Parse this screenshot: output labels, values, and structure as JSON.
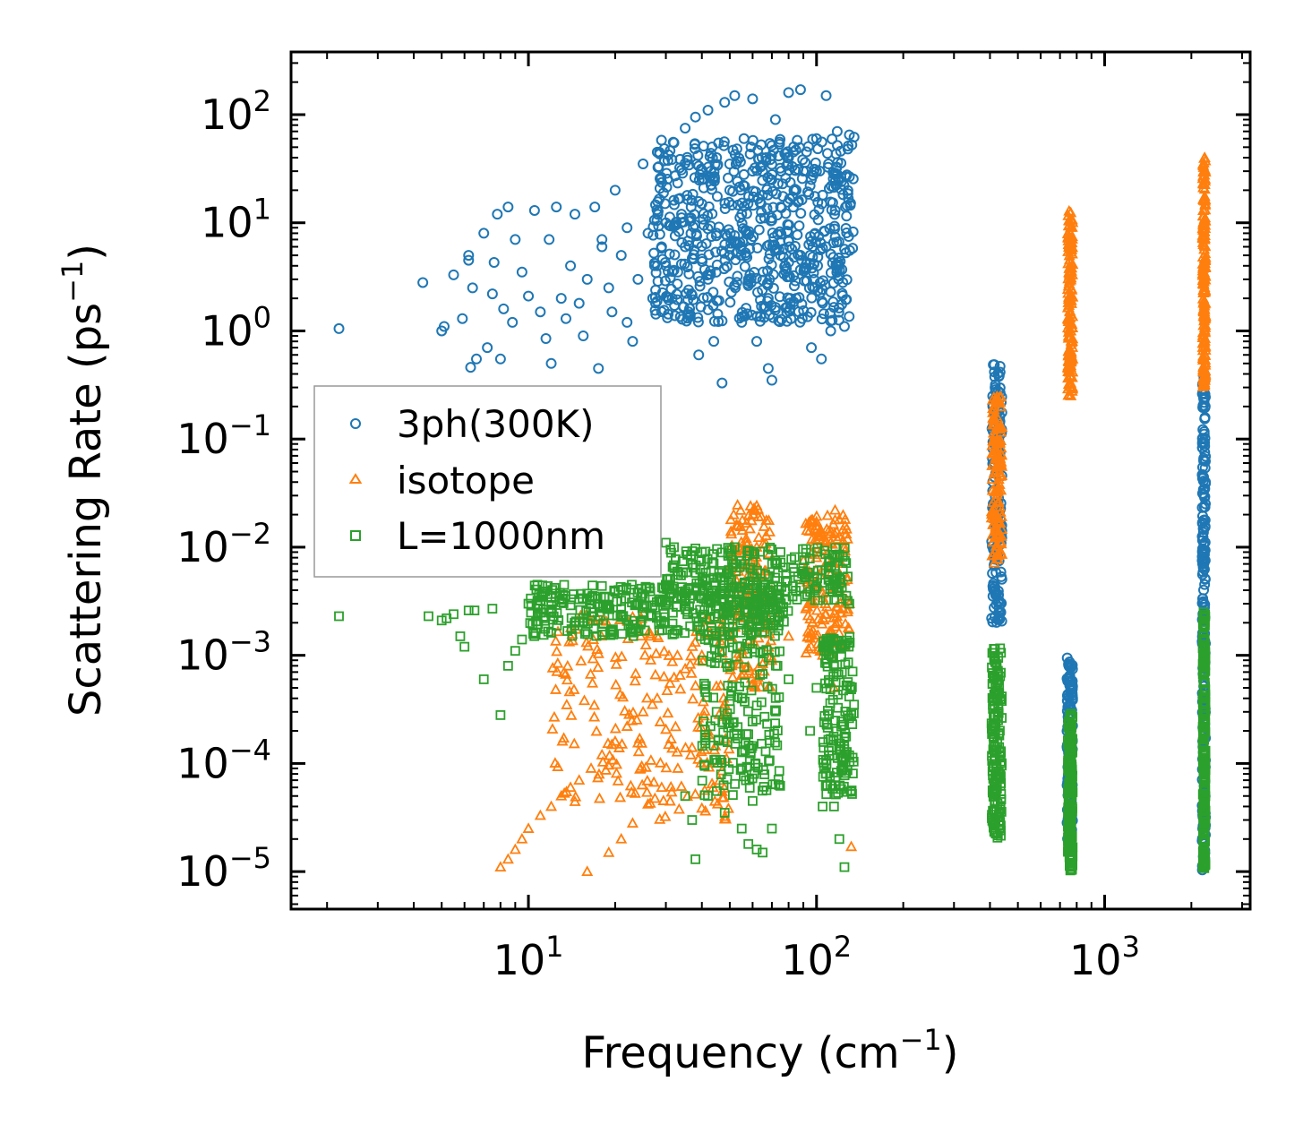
{
  "chart_data": {
    "type": "scatter",
    "title": "",
    "xlabel": "Frequency (cm",
    "xlabel_sup": "−1",
    "xlabel_close": ")",
    "ylabel": "Scattering Rate (ps",
    "ylabel_sup": "−1",
    "ylabel_close": ")",
    "xscale": "log",
    "yscale": "log",
    "xlim": [
      1.5,
      3200
    ],
    "ylim": [
      4.5e-06,
      380
    ],
    "x_ticks": [
      {
        "value": 10,
        "base": "10",
        "exp": "1"
      },
      {
        "value": 100,
        "base": "10",
        "exp": "2"
      },
      {
        "value": 1000,
        "base": "10",
        "exp": "3"
      }
    ],
    "y_ticks": [
      {
        "value": 1e-05,
        "base": "10",
        "exp": "−5"
      },
      {
        "value": 0.0001,
        "base": "10",
        "exp": "−4"
      },
      {
        "value": 0.001,
        "base": "10",
        "exp": "−3"
      },
      {
        "value": 0.01,
        "base": "10",
        "exp": "−2"
      },
      {
        "value": 0.1,
        "base": "10",
        "exp": "−1"
      },
      {
        "value": 1,
        "base": "10",
        "exp": "0"
      },
      {
        "value": 10,
        "base": "10",
        "exp": "1"
      },
      {
        "value": 100,
        "base": "10",
        "exp": "2"
      }
    ],
    "legend_position": "center-left",
    "series": [
      {
        "name": "3ph(300K)",
        "marker": "circle",
        "color": "#1f77b4",
        "points": [
          [
            2.2,
            1.05
          ],
          [
            4.3,
            2.8
          ],
          [
            5.0,
            1.0
          ],
          [
            5.1,
            1.1
          ],
          [
            5.5,
            3.3
          ],
          [
            5.9,
            1.3
          ],
          [
            6.2,
            4.5
          ],
          [
            6.2,
            5.0
          ],
          [
            6.3,
            0.46
          ],
          [
            6.4,
            2.5
          ],
          [
            6.6,
            0.55
          ],
          [
            7.0,
            8.0
          ],
          [
            7.2,
            0.7
          ],
          [
            7.5,
            2.2
          ],
          [
            7.6,
            4.3
          ],
          [
            7.8,
            12.0
          ],
          [
            8.0,
            0.55
          ],
          [
            8.2,
            1.6
          ],
          [
            8.5,
            14.0
          ],
          [
            8.8,
            1.2
          ],
          [
            9.0,
            7.0
          ],
          [
            9.5,
            3.5
          ],
          [
            10.0,
            2.1
          ],
          [
            10.5,
            13.0
          ],
          [
            11.0,
            1.5
          ],
          [
            11.5,
            0.85
          ],
          [
            11.8,
            7.0
          ],
          [
            12.0,
            0.5
          ],
          [
            12.5,
            14.0
          ],
          [
            13.0,
            2.0
          ],
          [
            13.5,
            1.3
          ],
          [
            14.0,
            4.0
          ],
          [
            14.5,
            12.0
          ],
          [
            15.0,
            1.8
          ],
          [
            15.5,
            0.9
          ],
          [
            16.0,
            3.0
          ],
          [
            17.0,
            14.0
          ],
          [
            17.5,
            0.45
          ],
          [
            18.0,
            6.0
          ],
          [
            19.0,
            2.5
          ],
          [
            19.5,
            1.5
          ],
          [
            20.0,
            20.0
          ],
          [
            21.0,
            5.0
          ],
          [
            22.0,
            1.2
          ],
          [
            23.0,
            0.8
          ],
          [
            24.0,
            3.0
          ],
          [
            25.0,
            35.0
          ],
          [
            26.0,
            8.0
          ],
          [
            27.0,
            2.0
          ],
          [
            28.0,
            45.0
          ],
          [
            29.0,
            6.0
          ],
          [
            30.0,
            4.0
          ],
          [
            32.0,
            55.0
          ],
          [
            33.0,
            3.5
          ],
          [
            34.0,
            12.0
          ],
          [
            35.0,
            75.0
          ],
          [
            36.0,
            1.5
          ],
          [
            38.0,
            95.0
          ],
          [
            39.0,
            0.6
          ],
          [
            40.0,
            25.0
          ],
          [
            42.0,
            110.0
          ],
          [
            44.0,
            0.8
          ],
          [
            45.0,
            40.0
          ],
          [
            47.0,
            0.33
          ],
          [
            48.0,
            130.0
          ],
          [
            50.0,
            5.0
          ],
          [
            52.0,
            150.0
          ],
          [
            55.0,
            1.2
          ],
          [
            56.0,
            60.0
          ],
          [
            60.0,
            140.0
          ],
          [
            62.0,
            0.8
          ],
          [
            65.0,
            30.0
          ],
          [
            68.0,
            0.45
          ],
          [
            70.0,
            0.35
          ],
          [
            72.0,
            90.0
          ],
          [
            75.0,
            5.0
          ],
          [
            80.0,
            160.0
          ],
          [
            85.0,
            2.0
          ],
          [
            88.0,
            170.0
          ],
          [
            92.0,
            30.0
          ],
          [
            96.0,
            0.7
          ],
          [
            100.0,
            60.0
          ],
          [
            104.0,
            0.55
          ],
          [
            108.0,
            150.0
          ],
          [
            112.0,
            1.0
          ],
          [
            118.0,
            70.0
          ],
          [
            125.0,
            1.1
          ],
          [
            130.0,
            65.0
          ],
          [
            135.0,
            62.0
          ],
          [
            30,
            10
          ],
          [
            40,
            15
          ],
          [
            50,
            20
          ],
          [
            60,
            30
          ],
          [
            70,
            25
          ],
          [
            80,
            40
          ],
          [
            90,
            30
          ],
          [
            100,
            30
          ],
          [
            110,
            35
          ],
          [
            120,
            25
          ],
          [
            45,
            8
          ],
          [
            55,
            12
          ],
          [
            65,
            18
          ],
          [
            75,
            14
          ],
          [
            85,
            20
          ],
          [
            95,
            22
          ],
          [
            105,
            18
          ],
          [
            115,
            28
          ],
          [
            35,
            6
          ],
          [
            28,
            4
          ],
          [
            22,
            9
          ],
          [
            18,
            7
          ],
          [
            42,
            3
          ],
          [
            58,
            3
          ],
          [
            68,
            2
          ],
          [
            78,
            4
          ],
          [
            88,
            5
          ],
          [
            98,
            3
          ],
          [
            108,
            6
          ],
          [
            118,
            4
          ]
        ],
        "bands": [
          {
            "x": [
              27,
              135
            ],
            "y": [
              1.2,
              60
            ],
            "count": 650
          },
          {
            "x": [
              405,
              440
            ],
            "y": [
              0.002,
              0.5
            ],
            "count": 160
          },
          {
            "x": [
              740,
              775
            ],
            "y": [
              2e-05,
              0.001
            ],
            "count": 130
          },
          {
            "x": [
              2180,
              2240
            ],
            "y": [
              1e-05,
              0.4
            ],
            "count": 220
          }
        ]
      },
      {
        "name": "isotope",
        "marker": "triangle",
        "color": "#ff7f0e",
        "points": [
          [
            8.0,
            1.1e-05
          ],
          [
            8.5,
            1.3e-05
          ],
          [
            9.0,
            1.6e-05
          ],
          [
            9.5,
            2e-05
          ],
          [
            10.0,
            2.5e-05
          ],
          [
            11.0,
            3.3e-05
          ],
          [
            12.0,
            4e-05
          ],
          [
            13.0,
            5e-05
          ],
          [
            14.0,
            6e-05
          ],
          [
            15.0,
            7e-05
          ],
          [
            16.0,
            1e-05
          ],
          [
            16.5,
            9e-05
          ],
          [
            18.0,
            0.00012
          ],
          [
            19.0,
            1.5e-05
          ],
          [
            20.0,
            0.00016
          ],
          [
            21.0,
            2e-05
          ],
          [
            22.0,
            0.00022
          ],
          [
            23.0,
            2.8e-05
          ],
          [
            25.0,
            0.0003
          ],
          [
            26.0,
            4.2e-05
          ],
          [
            28.0,
            0.0004
          ],
          [
            29.0,
            6e-05
          ],
          [
            31.0,
            0.00055
          ],
          [
            33.0,
            9e-05
          ],
          [
            35.0,
            0.00075
          ],
          [
            37.0,
            0.00014
          ],
          [
            40.0,
            0.001
          ],
          [
            42.0,
            0.0002
          ],
          [
            45.0,
            0.0015
          ],
          [
            48.0,
            0.00028
          ],
          [
            50.0,
            0.0025
          ],
          [
            54.0,
            0.0045
          ],
          [
            57.0,
            0.012
          ],
          [
            59.0,
            0.024
          ],
          [
            62.0,
            0.01
          ],
          [
            66.0,
            0.006
          ],
          [
            70.0,
            0.004
          ],
          [
            75.0,
            0.0025
          ],
          [
            80.0,
            0.0015
          ],
          [
            90.0,
            0.005
          ],
          [
            100.0,
            0.008
          ],
          [
            110.0,
            0.014
          ],
          [
            116.0,
            0.022
          ],
          [
            120.0,
            0.018
          ],
          [
            125.0,
            0.01
          ],
          [
            128.0,
            0.005
          ],
          [
            130.0,
            0.003
          ],
          [
            132.0,
            1.7e-05
          ],
          [
            115.0,
            0.0005
          ],
          [
            105.0,
            0.001
          ],
          [
            95.0,
            0.003
          ]
        ],
        "bands": [
          {
            "x": [
              12,
              50
            ],
            "y": [
              3e-05,
              0.0025
            ],
            "count": 220
          },
          {
            "x": [
              50,
              70
            ],
            "y": [
              0.0005,
              0.025
            ],
            "count": 150
          },
          {
            "x": [
              90,
              130
            ],
            "y": [
              0.001,
              0.02
            ],
            "count": 150
          },
          {
            "x": [
              405,
              440
            ],
            "y": [
              0.007,
              0.25
            ],
            "count": 150
          },
          {
            "x": [
              745,
              775
            ],
            "y": [
              0.25,
              13
            ],
            "count": 160
          },
          {
            "x": [
              2190,
              2240
            ],
            "y": [
              0.3,
              40
            ],
            "count": 200
          }
        ]
      },
      {
        "name": "L=1000nm",
        "marker": "square",
        "color": "#2ca02c",
        "points": [
          [
            2.2,
            0.0023
          ],
          [
            4.5,
            0.0023
          ],
          [
            5.0,
            0.0021
          ],
          [
            5.2,
            0.0022
          ],
          [
            5.5,
            0.0024
          ],
          [
            5.8,
            0.0015
          ],
          [
            6.0,
            0.0012
          ],
          [
            6.2,
            0.0026
          ],
          [
            6.5,
            0.0026
          ],
          [
            7.0,
            0.0006
          ],
          [
            7.5,
            0.0027
          ],
          [
            8.0,
            0.00028
          ],
          [
            8.5,
            0.0008
          ],
          [
            9.0,
            0.0011
          ],
          [
            9.5,
            0.0014
          ],
          [
            10.0,
            0.003
          ],
          [
            11.0,
            0.0032
          ],
          [
            12.0,
            0.0034
          ],
          [
            13.0,
            0.0031
          ],
          [
            14.0,
            0.0029
          ],
          [
            15.0,
            0.0033
          ],
          [
            17.0,
            0.0035
          ],
          [
            19.0,
            0.0028
          ],
          [
            21.0,
            0.0032
          ],
          [
            24.0,
            0.003
          ],
          [
            27.0,
            0.0029
          ],
          [
            30.0,
            0.011
          ],
          [
            32.0,
            0.01
          ],
          [
            35.0,
            5e-05
          ],
          [
            37.0,
            3e-05
          ],
          [
            38.0,
            1.3e-05
          ],
          [
            40.0,
            0.009
          ],
          [
            45.0,
            0.0003
          ],
          [
            48.0,
            3.5e-05
          ],
          [
            50.0,
            0.0008
          ],
          [
            52.0,
            0.01
          ],
          [
            55.0,
            2.5e-05
          ],
          [
            58.0,
            1.8e-05
          ],
          [
            60.0,
            4.5e-05
          ],
          [
            62.0,
            1.6e-05
          ],
          [
            65.0,
            1.5e-05
          ],
          [
            70.0,
            2.5e-05
          ],
          [
            75.0,
            0.009
          ],
          [
            80.0,
            0.0006
          ],
          [
            90.0,
            0.006
          ],
          [
            95.0,
            0.0002
          ],
          [
            100.0,
            0.0005
          ],
          [
            105.0,
            4e-05
          ],
          [
            110.0,
            0.005
          ],
          [
            115.0,
            4e-05
          ],
          [
            120.0,
            2e-05
          ],
          [
            125.0,
            1.1e-05
          ],
          [
            130.0,
            0.003
          ],
          [
            135.0,
            0.00035
          ]
        ],
        "bands": [
          {
            "x": [
              10,
              80
            ],
            "y": [
              0.0015,
              0.0045
            ],
            "count": 350
          },
          {
            "x": [
              40,
              75
            ],
            "y": [
              5e-05,
              0.005
            ],
            "count": 220
          },
          {
            "x": [
              30,
              130
            ],
            "y": [
              0.003,
              0.01
            ],
            "count": 220
          },
          {
            "x": [
              105,
              135
            ],
            "y": [
              5e-05,
              0.0015
            ],
            "count": 150
          },
          {
            "x": [
              405,
              440
            ],
            "y": [
              2e-05,
              0.0012
            ],
            "count": 170
          },
          {
            "x": [
              745,
              775
            ],
            "y": [
              1e-05,
              0.0003
            ],
            "count": 180
          },
          {
            "x": [
              2190,
              2240
            ],
            "y": [
              1e-05,
              0.0025
            ],
            "count": 200
          }
        ]
      }
    ]
  }
}
